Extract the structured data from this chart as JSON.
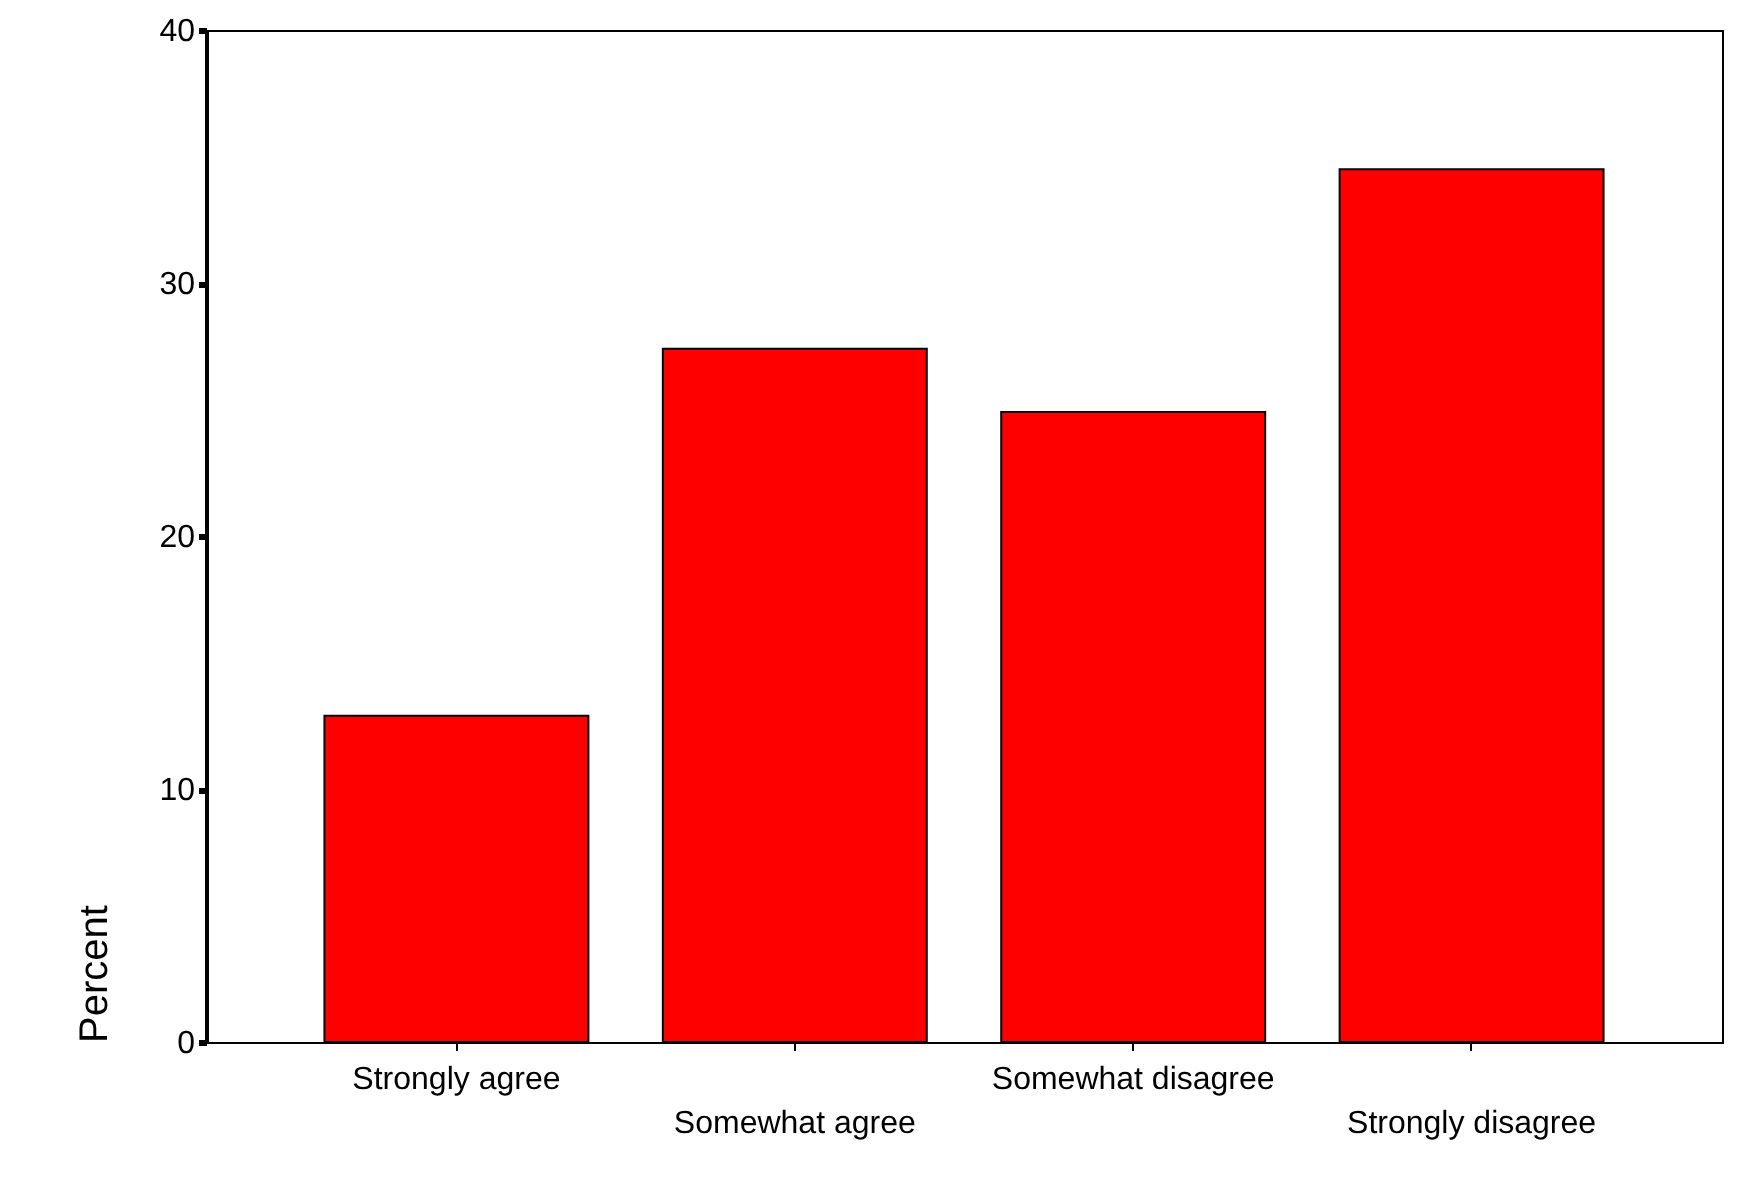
{
  "chart_data": {
    "type": "bar",
    "ylabel": "Percent",
    "categories": [
      "Strongly agree",
      "Somewhat agree",
      "Somewhat disagree",
      "Strongly disagree"
    ],
    "values": [
      12.9,
      27.4,
      24.9,
      34.5
    ],
    "color": "#ff0000",
    "ylim": [
      0,
      40
    ],
    "yticks": [
      0,
      10,
      20,
      30,
      40
    ],
    "grid": false
  }
}
